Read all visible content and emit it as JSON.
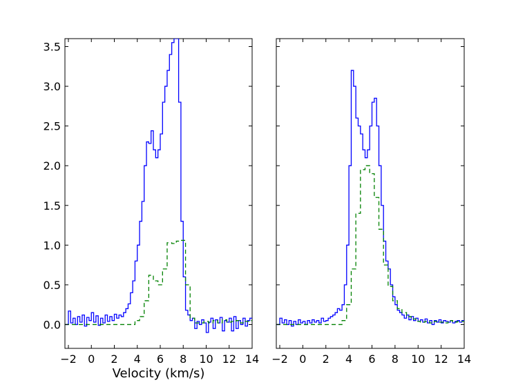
{
  "chart_data": [
    {
      "type": "line",
      "xlabel": "Velocity (km/s)",
      "ylabel": "",
      "xlim": [
        -2.3,
        14
      ],
      "ylim": [
        -0.3,
        3.6
      ],
      "xticks": [
        -2,
        0,
        2,
        4,
        6,
        8,
        10,
        12,
        14
      ],
      "xtick_labels": [
        "−2",
        "0",
        "2",
        "4",
        "6",
        "8",
        "10",
        "12",
        "14"
      ],
      "yticks": [
        0.0,
        0.5,
        1.0,
        1.5,
        2.0,
        2.5,
        3.0,
        3.5
      ],
      "ytick_labels": [
        "0.0",
        "0.5",
        "1.0",
        "1.5",
        "2.0",
        "2.5",
        "3.0",
        "3.5"
      ],
      "grid": false,
      "step": true,
      "series": [
        {
          "style": "solid",
          "color": "#0000ff",
          "x": [
            -2.3,
            -2.0,
            -1.8,
            -1.6,
            -1.4,
            -1.2,
            -1.0,
            -0.8,
            -0.6,
            -0.4,
            -0.2,
            0.0,
            0.2,
            0.4,
            0.6,
            0.8,
            1.0,
            1.2,
            1.4,
            1.6,
            1.8,
            2.0,
            2.2,
            2.4,
            2.6,
            2.8,
            3.0,
            3.2,
            3.4,
            3.6,
            3.8,
            4.0,
            4.2,
            4.4,
            4.6,
            4.8,
            5.0,
            5.2,
            5.4,
            5.6,
            5.8,
            6.0,
            6.2,
            6.4,
            6.6,
            6.8,
            7.0,
            7.2,
            7.4,
            7.6,
            7.8,
            8.0,
            8.2,
            8.4,
            8.6,
            8.8,
            9.0,
            9.2,
            9.4,
            9.6,
            9.8,
            10.0,
            10.2,
            10.4,
            10.6,
            10.8,
            11.0,
            11.2,
            11.4,
            11.6,
            11.8,
            12.0,
            12.2,
            12.4,
            12.6,
            12.8,
            13.0,
            13.2,
            13.4,
            13.6,
            13.8
          ],
          "y": [
            0.0,
            0.17,
            0.02,
            0.08,
            0.0,
            0.1,
            0.03,
            0.12,
            -0.02,
            0.09,
            0.05,
            0.15,
            0.03,
            0.11,
            -0.01,
            0.08,
            0.02,
            0.12,
            0.04,
            0.1,
            0.05,
            0.13,
            0.08,
            0.12,
            0.1,
            0.15,
            0.2,
            0.26,
            0.4,
            0.55,
            0.8,
            1.0,
            1.3,
            1.55,
            2.0,
            2.3,
            2.28,
            2.44,
            2.2,
            2.1,
            2.2,
            2.4,
            2.8,
            3.0,
            3.2,
            3.4,
            3.55,
            3.6,
            3.6,
            2.8,
            1.3,
            0.6,
            0.18,
            0.12,
            0.05,
            0.08,
            -0.05,
            0.04,
            0.0,
            0.06,
            0.02,
            -0.1,
            0.03,
            0.08,
            -0.05,
            0.06,
            0.02,
            0.09,
            -0.08,
            0.05,
            0.03,
            0.08,
            -0.08,
            0.1,
            -0.05,
            0.05,
            0.0,
            0.08,
            -0.02,
            0.05,
            0.08
          ]
        },
        {
          "style": "dashed",
          "color": "#008000",
          "x": [
            -2.3,
            3.8,
            4.2,
            4.6,
            5.0,
            5.4,
            5.8,
            6.2,
            6.6,
            7.0,
            7.4,
            7.8,
            8.2,
            8.6,
            9.0,
            9.4,
            9.8,
            10.2,
            10.6,
            11.0,
            11.4,
            11.8,
            12.2,
            12.6,
            13.0,
            13.4,
            13.8
          ],
          "y": [
            0.0,
            0.05,
            0.1,
            0.3,
            0.62,
            0.55,
            0.5,
            0.7,
            1.03,
            1.02,
            1.05,
            1.06,
            0.5,
            0.08,
            0.02,
            0.02,
            0.04,
            0.02,
            0.05,
            0.02,
            0.06,
            0.03,
            0.04,
            0.05,
            0.02,
            0.04,
            0.05
          ]
        }
      ]
    },
    {
      "type": "line",
      "xlabel": "",
      "ylabel": "",
      "xlim": [
        -2.3,
        14
      ],
      "ylim": [
        -0.3,
        3.6
      ],
      "xticks": [
        -2,
        0,
        2,
        4,
        6,
        8,
        10,
        12,
        14
      ],
      "xtick_labels": [
        "−2",
        "0",
        "2",
        "4",
        "6",
        "8",
        "10",
        "12",
        "14"
      ],
      "yticks": [
        0.0,
        0.5,
        1.0,
        1.5,
        2.0,
        2.5,
        3.0,
        3.5
      ],
      "ytick_labels": [],
      "grid": false,
      "step": true,
      "series": [
        {
          "style": "solid",
          "color": "#0000ff",
          "x": [
            -2.3,
            -2.0,
            -1.8,
            -1.6,
            -1.4,
            -1.2,
            -1.0,
            -0.8,
            -0.6,
            -0.4,
            -0.2,
            0.0,
            0.2,
            0.4,
            0.6,
            0.8,
            1.0,
            1.2,
            1.4,
            1.6,
            1.8,
            2.0,
            2.2,
            2.4,
            2.6,
            2.8,
            3.0,
            3.2,
            3.4,
            3.6,
            3.8,
            4.0,
            4.2,
            4.4,
            4.6,
            4.8,
            5.0,
            5.2,
            5.4,
            5.6,
            5.8,
            6.0,
            6.2,
            6.4,
            6.6,
            6.8,
            7.0,
            7.2,
            7.4,
            7.6,
            7.8,
            8.0,
            8.2,
            8.4,
            8.6,
            8.8,
            9.0,
            9.2,
            9.4,
            9.6,
            9.8,
            10.0,
            10.2,
            10.4,
            10.6,
            10.8,
            11.0,
            11.2,
            11.4,
            11.6,
            11.8,
            12.0,
            12.2,
            12.4,
            12.6,
            12.8,
            13.0,
            13.2,
            13.4,
            13.6,
            13.8
          ],
          "y": [
            0.0,
            0.08,
            0.02,
            0.06,
            0.0,
            0.05,
            -0.02,
            0.04,
            0.0,
            0.06,
            0.02,
            0.04,
            0.0,
            0.05,
            0.02,
            0.06,
            0.03,
            0.05,
            0.02,
            0.08,
            0.04,
            0.05,
            0.08,
            0.1,
            0.12,
            0.15,
            0.2,
            0.18,
            0.25,
            0.5,
            1.0,
            2.0,
            3.2,
            3.0,
            2.6,
            2.5,
            2.4,
            2.2,
            2.1,
            2.2,
            2.5,
            2.8,
            2.85,
            2.5,
            2.0,
            1.5,
            1.05,
            0.8,
            0.7,
            0.5,
            0.35,
            0.25,
            0.18,
            0.15,
            0.12,
            0.08,
            0.12,
            0.06,
            0.1,
            0.05,
            0.08,
            0.04,
            0.06,
            0.03,
            0.07,
            0.02,
            0.05,
            0.0,
            0.05,
            0.03,
            0.06,
            0.02,
            0.05,
            0.04,
            0.03,
            0.05,
            0.02,
            0.04,
            0.05,
            0.03,
            0.05
          ]
        },
        {
          "style": "dashed",
          "color": "#008000",
          "x": [
            -2.3,
            3.4,
            3.8,
            4.2,
            4.6,
            5.0,
            5.4,
            5.8,
            6.2,
            6.6,
            7.0,
            7.4,
            7.8,
            8.2,
            8.6,
            9.0,
            9.4,
            9.8,
            10.2,
            10.6,
            11.0,
            11.4,
            11.8,
            12.2,
            12.6,
            13.0,
            13.4,
            13.8
          ],
          "y": [
            0.0,
            0.05,
            0.25,
            0.7,
            1.4,
            1.95,
            2.0,
            1.9,
            1.6,
            1.2,
            0.75,
            0.48,
            0.3,
            0.2,
            0.15,
            0.1,
            0.07,
            0.04,
            0.03,
            0.04,
            0.02,
            0.04,
            0.03,
            0.02,
            0.05,
            0.03,
            0.04,
            0.04
          ]
        }
      ]
    }
  ]
}
